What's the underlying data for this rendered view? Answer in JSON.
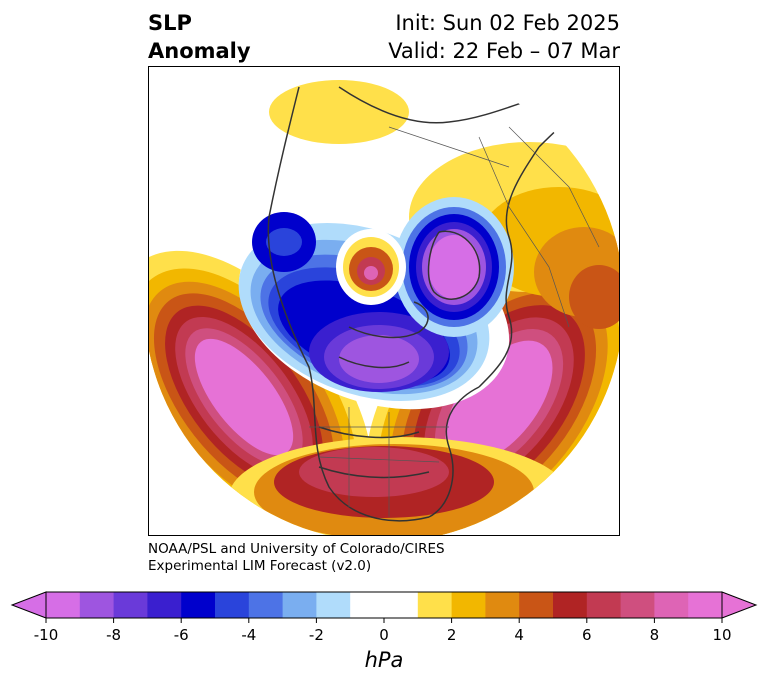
{
  "title": {
    "left_line1": "SLP",
    "left_line2": "Anomaly",
    "right_line1": "Init: Sun 02 Feb 2025",
    "right_line2": "Valid: 22 Feb – 07 Mar"
  },
  "credit": {
    "line1": "NOAA/PSL and University of Colorado/CIRES",
    "line2": "Experimental LIM Forecast (v2.0)"
  },
  "colorbar": {
    "unit": "hPa",
    "ticks": [
      "-10",
      "-8",
      "-6",
      "-4",
      "-2",
      "0",
      "2",
      "4",
      "6",
      "8",
      "10"
    ],
    "levels": [
      -10,
      -9,
      -8,
      -7,
      -6,
      -5,
      -4,
      -3,
      -2,
      -1,
      1,
      2,
      3,
      4,
      5,
      6,
      7,
      8,
      9,
      10
    ],
    "colors": [
      "#d66ee6",
      "#9e55e0",
      "#6a3ad9",
      "#3a1fcf",
      "#0000cc",
      "#2a44db",
      "#4d73e6",
      "#7aaef0",
      "#b0dcfb",
      "#ffffff",
      "#ffe04a",
      "#f2b700",
      "#e08a10",
      "#c95516",
      "#b02424",
      "#c23a52",
      "#cf4f7f",
      "#de64b5",
      "#e672d6"
    ],
    "under_color": "#d66ee6",
    "over_color": "#e672d6"
  },
  "map": {
    "projection": "north-polar-stereographic",
    "features": [
      {
        "name": "alaska-pacific-high",
        "sign": "positive",
        "peak_hpa": 10
      },
      {
        "name": "north-atlantic-high",
        "sign": "positive",
        "peak_hpa": 10
      },
      {
        "name": "canada-arctic-low",
        "sign": "negative",
        "peak_hpa": -10
      },
      {
        "name": "greenland-low",
        "sign": "negative",
        "peak_hpa": -10
      },
      {
        "name": "siberia-high",
        "sign": "positive",
        "peak_hpa": 9
      }
    ]
  }
}
